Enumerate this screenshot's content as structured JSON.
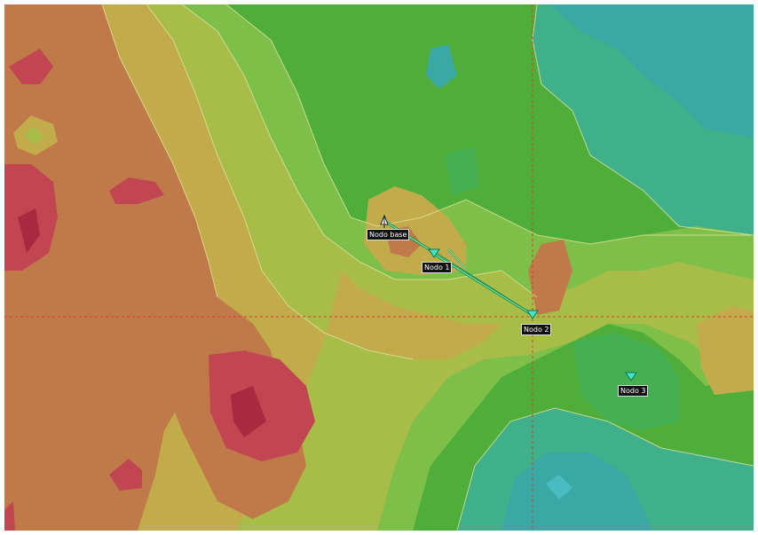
{
  "map": {
    "colors": {
      "lowest": "#3bb0b0",
      "low": "#45b86a",
      "mid_low": "#6cbf45",
      "mid": "#a4bc45",
      "mid_high": "#c2aa48",
      "high": "#c07a4a",
      "highest": "#c24552",
      "link": "#2fbf6a",
      "crosshair": "#e03a2a",
      "node_marker": "#3fe6c0"
    }
  },
  "nodes": [
    {
      "id": "base",
      "label": "Nodo base",
      "icon": "antenna-icon"
    },
    {
      "id": "n1",
      "label": "Nodo 1",
      "icon": "node-marker-icon"
    },
    {
      "id": "n2",
      "label": "Nodo 2",
      "icon": "node-marker-icon"
    },
    {
      "id": "n3",
      "label": "Nodo 3",
      "icon": "node-marker-icon"
    }
  ]
}
